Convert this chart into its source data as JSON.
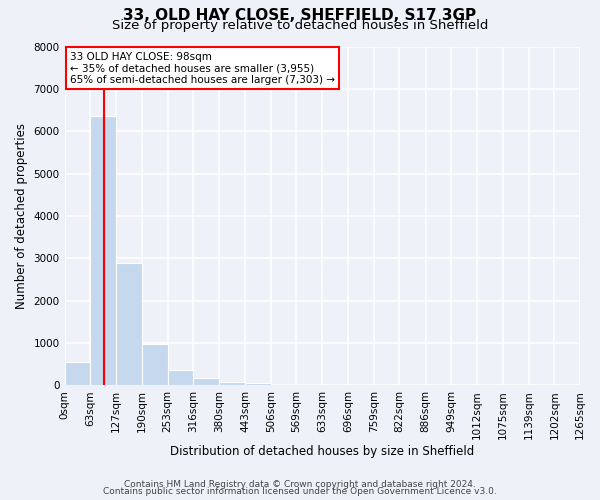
{
  "title1": "33, OLD HAY CLOSE, SHEFFIELD, S17 3GP",
  "title2": "Size of property relative to detached houses in Sheffield",
  "xlabel": "Distribution of detached houses by size in Sheffield",
  "ylabel": "Number of detached properties",
  "bar_left_edges": [
    0,
    63,
    127,
    190,
    253,
    316,
    380,
    443
  ],
  "bar_heights": [
    550,
    6350,
    2900,
    975,
    370,
    170,
    80,
    50
  ],
  "bin_width": 63,
  "bar_color": "#c5d8ee",
  "property_line_x": 98,
  "property_line_color": "red",
  "xlim": [
    0,
    1265
  ],
  "ylim": [
    0,
    8000
  ],
  "xtick_labels": [
    "0sqm",
    "63sqm",
    "127sqm",
    "190sqm",
    "253sqm",
    "316sqm",
    "380sqm",
    "443sqm",
    "506sqm",
    "569sqm",
    "633sqm",
    "696sqm",
    "759sqm",
    "822sqm",
    "886sqm",
    "949sqm",
    "1012sqm",
    "1075sqm",
    "1139sqm",
    "1202sqm",
    "1265sqm"
  ],
  "xtick_positions": [
    0,
    63,
    127,
    190,
    253,
    316,
    380,
    443,
    506,
    569,
    633,
    696,
    759,
    822,
    886,
    949,
    1012,
    1075,
    1139,
    1202,
    1265
  ],
  "ytick_positions": [
    0,
    1000,
    2000,
    3000,
    4000,
    5000,
    6000,
    7000,
    8000
  ],
  "ytick_labels": [
    "0",
    "1000",
    "2000",
    "3000",
    "4000",
    "5000",
    "6000",
    "7000",
    "8000"
  ],
  "annotation_line1": "33 OLD HAY CLOSE: 98sqm",
  "annotation_line2": "← 35% of detached houses are smaller (3,955)",
  "annotation_line3": "65% of semi-detached houses are larger (7,303) →",
  "footer1": "Contains HM Land Registry data © Crown copyright and database right 2024.",
  "footer2": "Contains public sector information licensed under the Open Government Licence v3.0.",
  "background_color": "#eef2f8",
  "grid_color": "white",
  "title1_fontsize": 11,
  "title2_fontsize": 9.5,
  "axis_label_fontsize": 8.5,
  "tick_fontsize": 7.5,
  "annotation_fontsize": 7.5,
  "footer_fontsize": 6.5
}
